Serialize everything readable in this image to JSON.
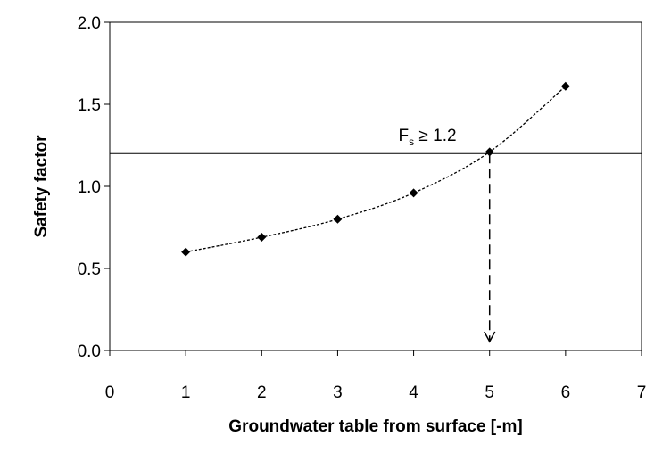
{
  "chart_data": {
    "type": "scatter",
    "xlabel": "Groundwater table from surface [-m]",
    "ylabel": "Safety factor",
    "xlim": [
      0,
      7
    ],
    "ylim": [
      0.0,
      2.0
    ],
    "x_ticks": [
      "0",
      "1",
      "2",
      "3",
      "4",
      "5",
      "6",
      "7"
    ],
    "y_ticks": [
      "0.0",
      "0.5",
      "1.0",
      "1.5",
      "2.0"
    ],
    "grid": false,
    "legend": "none",
    "series": [
      {
        "x": [
          1,
          2,
          3,
          4,
          5,
          6
        ],
        "y": [
          0.6,
          0.69,
          0.8,
          0.96,
          1.21,
          1.61
        ],
        "marker": "diamond",
        "line": "dotted smooth",
        "color": "#000000"
      }
    ],
    "reference_line": {
      "y": 1.2,
      "label_main": "F",
      "label_sub": "s",
      "label_rest": " ≥ 1.2"
    },
    "arrow": {
      "x": 5,
      "from_y": 1.2,
      "to_y": 0.0,
      "style": "dashed"
    }
  }
}
